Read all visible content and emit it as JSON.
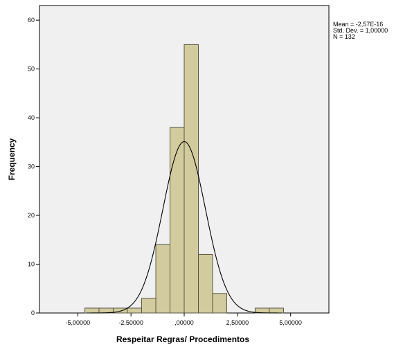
{
  "chart_data": {
    "type": "bar",
    "subtype": "histogram",
    "xlabel": "Respeitar Regras/ Procedimentos",
    "ylabel": "Frequency",
    "xlim": [
      -6.8,
      6.8
    ],
    "ylim": [
      0,
      63
    ],
    "x_ticks": [
      -5,
      -2.5,
      0,
      2.5,
      5
    ],
    "x_tick_labels": [
      "-5,00000",
      "-2,50000",
      ",00000",
      "2,50000",
      "5,00000"
    ],
    "y_ticks": [
      0,
      10,
      20,
      30,
      40,
      50,
      60
    ],
    "y_tick_labels": [
      "0",
      "10",
      "20",
      "30",
      "40",
      "50",
      "60"
    ],
    "bin_width": 0.667,
    "bins": [
      {
        "start": -4.667,
        "end": -4.0,
        "value": 1
      },
      {
        "start": -4.0,
        "end": -3.333,
        "value": 1
      },
      {
        "start": -3.333,
        "end": -2.667,
        "value": 1
      },
      {
        "start": -2.667,
        "end": -2.0,
        "value": 1
      },
      {
        "start": -2.0,
        "end": -1.333,
        "value": 3
      },
      {
        "start": -1.333,
        "end": -0.667,
        "value": 14
      },
      {
        "start": -0.667,
        "end": 0.0,
        "value": 38
      },
      {
        "start": 0.0,
        "end": 0.667,
        "value": 55
      },
      {
        "start": 0.667,
        "end": 1.333,
        "value": 12
      },
      {
        "start": 1.333,
        "end": 2.0,
        "value": 4
      },
      {
        "start": 3.333,
        "end": 4.0,
        "value": 1
      },
      {
        "start": 4.0,
        "end": 4.667,
        "value": 1
      }
    ],
    "normal_curve": {
      "mean": 0,
      "sd": 1,
      "n": 132
    },
    "stats": [
      "Mean = -2,57E-16",
      "Std. Dev. = 1,00000",
      "N = 132"
    ],
    "grid": false,
    "colors": {
      "bar_fill": "#d2cb9d",
      "bar_stroke": "#595646",
      "plot_bg": "#f0f0f0",
      "curve": "#000000"
    }
  }
}
